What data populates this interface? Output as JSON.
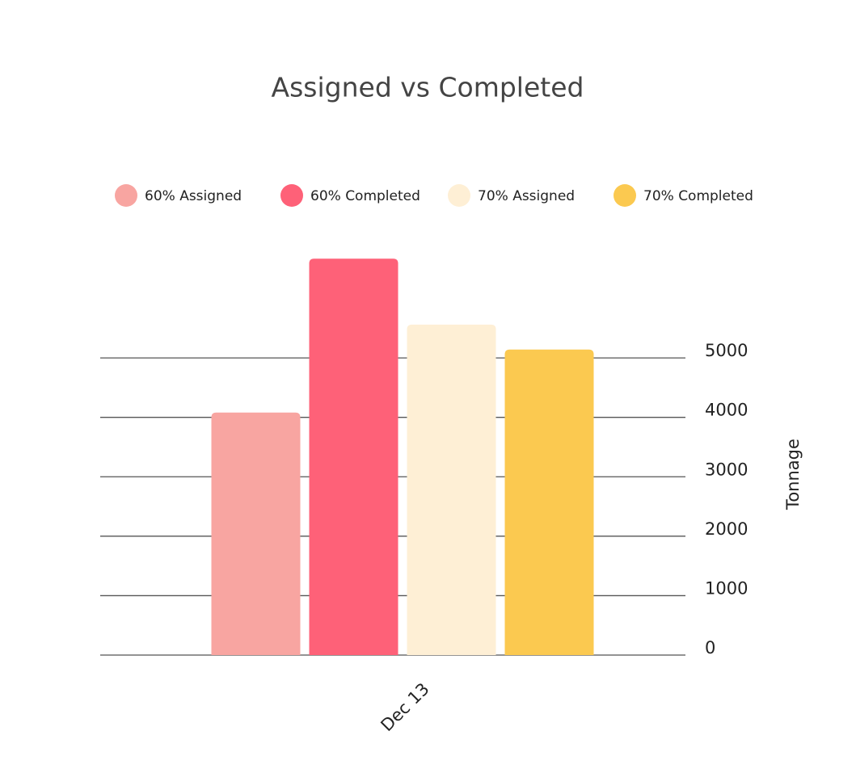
{
  "chart_data": {
    "type": "bar",
    "title": "Assigned vs Completed",
    "categories": [
      "Dec 13"
    ],
    "series": [
      {
        "name": "60% Assigned",
        "color": "#f8a5a1",
        "values": [
          4080
        ]
      },
      {
        "name": "60% Completed",
        "color": "#fe6178",
        "values": [
          6670
        ]
      },
      {
        "name": "70% Assigned",
        "color": "#feefd5",
        "values": [
          5560
        ]
      },
      {
        "name": "70% Completed",
        "color": "#fbc950",
        "values": [
          5140
        ]
      }
    ],
    "y_label": "Tonnage",
    "ylim": [
      0,
      6700
    ],
    "yticks": [
      0,
      1000,
      2000,
      3000,
      4000,
      5000
    ],
    "grid": true,
    "y_axis_side": "right",
    "legend": "top"
  }
}
